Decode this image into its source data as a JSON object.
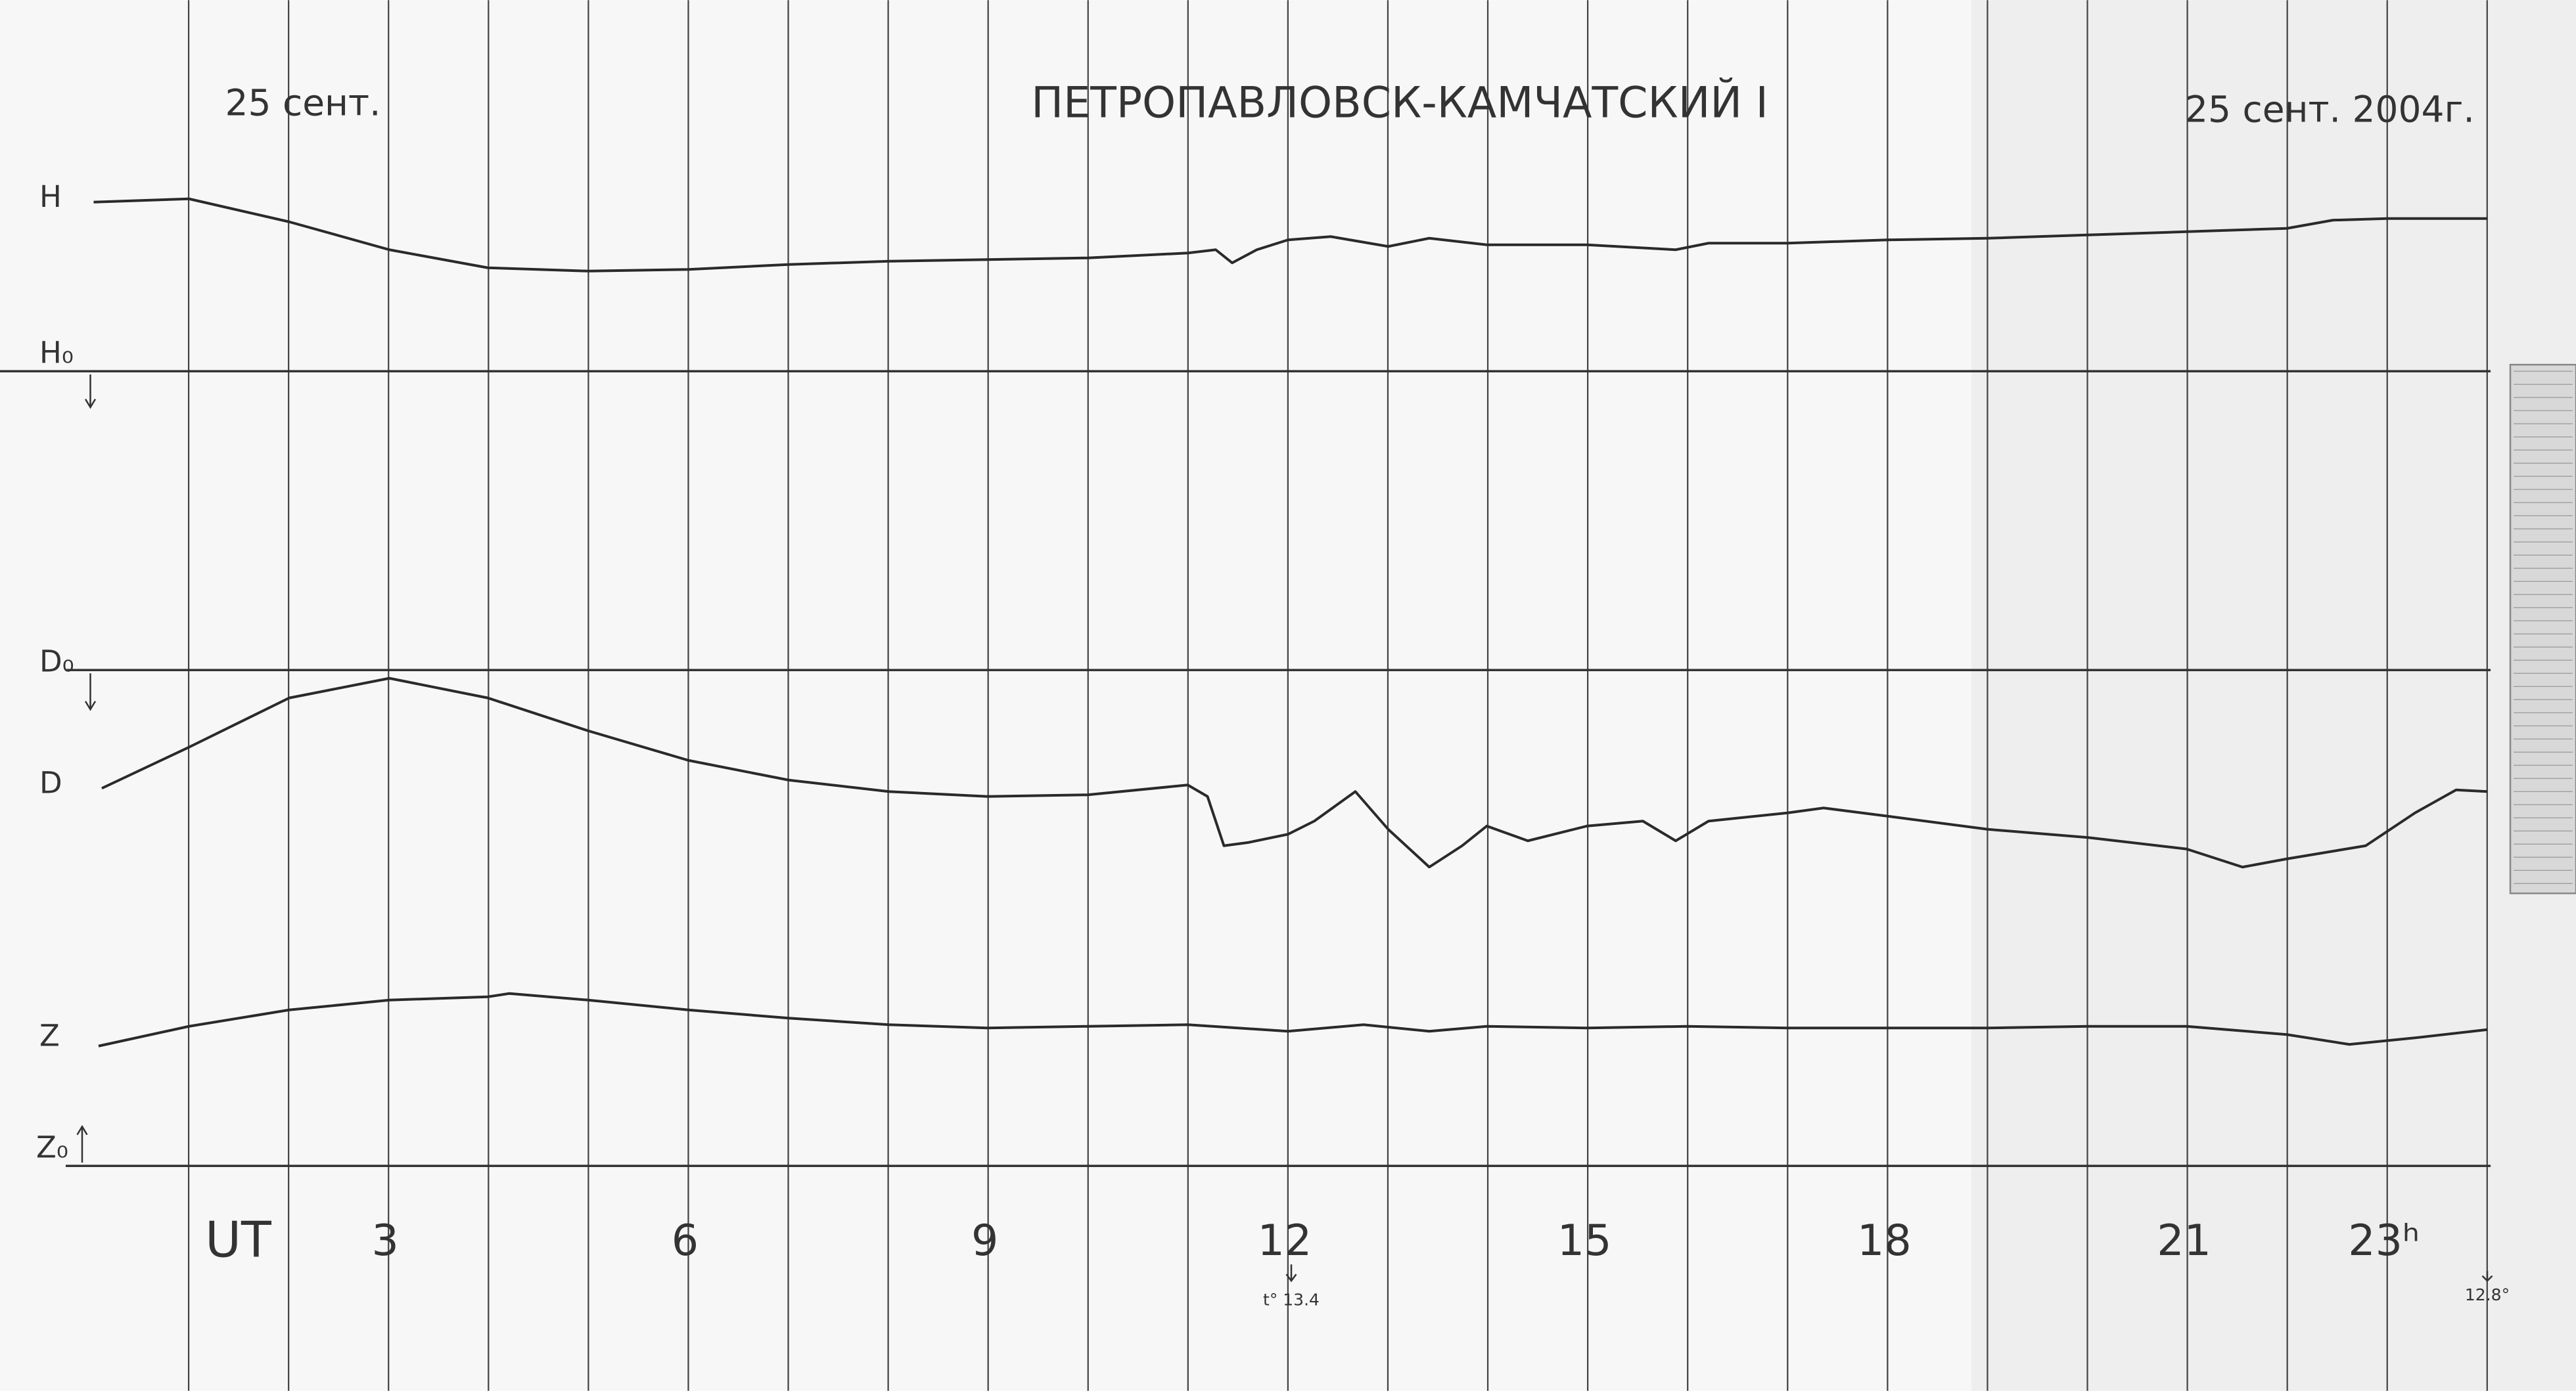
{
  "header": {
    "date_left": "25 сент.",
    "title": "ПЕТРОПАВЛОВСК-КАМЧАТСКИЙ I",
    "date_right": "25 сент. 2004г."
  },
  "trace_labels": [
    "H",
    "H₀",
    "D₀",
    "D",
    "Z",
    "Z₀"
  ],
  "time_axis": {
    "label": "UT",
    "hours": [
      "3",
      "6",
      "9",
      "12",
      "15",
      "18",
      "21",
      "23ʰ"
    ]
  },
  "notes": [
    "t° 13.4",
    "12.8°"
  ]
}
